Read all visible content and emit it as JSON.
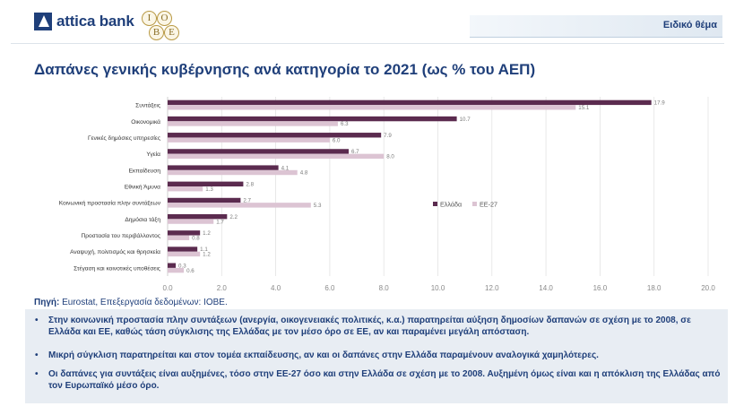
{
  "header": {
    "brand": "attica bank",
    "iobe_letters": [
      "I",
      "O",
      "B",
      "E"
    ],
    "section_label": "Ειδικό θέμα"
  },
  "title": "Δαπάνες γενικής κυβέρνησης ανά κατηγορία το 2021 (ως % του ΑΕΠ)",
  "source": {
    "label": "Πηγή:",
    "text": "Eurostat, Επεξεργασία δεδομένων: ΙΟΒΕ."
  },
  "notes": [
    "Στην κοινωνική προστασία πλην συντάξεων (ανεργία, οικογενειακές πολιτικές, κ.α.) παρατηρείται αύξηση δημοσίων δαπανών σε σχέση με το 2008, σε Ελλάδα και ΕΕ, καθώς τάση σύγκλισης της Ελλάδας με τον μέσο όρο σε ΕΕ, αν και παραμένει μεγάλη απόσταση.",
    "Μικρή σύγκλιση παρατηρείται και στον τομέα εκπαίδευσης, αν και οι δαπάνες στην Ελλάδα παραμένουν αναλογικά χαμηλότερες.",
    "Οι δαπάνες για συντάξεις είναι αυξημένες, τόσο στην ΕΕ-27 όσο και στην Ελλάδα σε σχέση με το 2008. Αυξημένη όμως είναι και η απόκλιση της Ελλάδας από τον Ευρωπαϊκό μέσο όρο."
  ],
  "chart_data": {
    "type": "bar",
    "orientation": "horizontal",
    "categories": [
      "Συντάξεις",
      "Οικονομικά",
      "Γενικές δημόσιες υπηρεσίες",
      "Υγεία",
      "Εκπαίδευση",
      "Εθνική Άμυνα",
      "Κοινωνική προστασία πλην συντάξεων",
      "Δημόσια τάξη",
      "Προστασία του περιβάλλοντος",
      "Αναψυχή, πολιτισμός και θρησκεία",
      "Στέγαση και κοινοτικές υποθέσεις"
    ],
    "series": [
      {
        "name": "Ελλάδα",
        "color": "#5b2b4f",
        "values": [
          17.9,
          10.7,
          7.9,
          6.7,
          4.1,
          2.8,
          2.7,
          2.2,
          1.2,
          1.1,
          0.3
        ]
      },
      {
        "name": "ΕΕ-27",
        "color": "#dcc4d3",
        "values": [
          15.1,
          6.3,
          6.0,
          8.0,
          4.8,
          1.3,
          5.3,
          1.7,
          0.8,
          1.2,
          0.6
        ]
      }
    ],
    "xlim": [
      0,
      20
    ],
    "xticks": [
      "0.0",
      "2.0",
      "4.0",
      "6.0",
      "8.0",
      "10.0",
      "12.0",
      "14.0",
      "16.0",
      "18.0",
      "20.0"
    ],
    "grid": true,
    "legend_position": "right"
  }
}
